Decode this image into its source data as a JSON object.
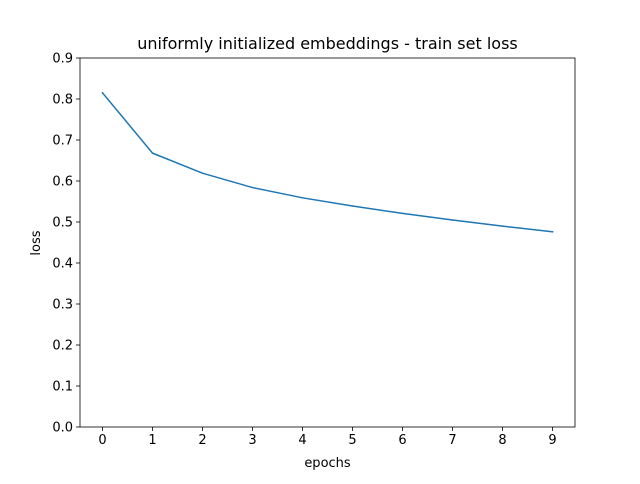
{
  "chart_data": {
    "type": "line",
    "title": "uniformly initialized embeddings - train set loss",
    "xlabel": "epochs",
    "ylabel": "loss",
    "x": [
      0,
      1,
      2,
      3,
      4,
      5,
      6,
      7,
      8,
      9
    ],
    "xlim": [
      -0.45,
      9.45
    ],
    "ylim": [
      0.0,
      0.9
    ],
    "xticks": [
      0,
      1,
      2,
      3,
      4,
      5,
      6,
      7,
      8,
      9
    ],
    "yticks": [
      0.0,
      0.1,
      0.2,
      0.3,
      0.4,
      0.5,
      0.6,
      0.7,
      0.8,
      0.9
    ],
    "xtick_labels": [
      "0",
      "1",
      "2",
      "3",
      "4",
      "5",
      "6",
      "7",
      "8",
      "9"
    ],
    "ytick_labels": [
      "0.0",
      "0.1",
      "0.2",
      "0.3",
      "0.4",
      "0.5",
      "0.6",
      "0.7",
      "0.8",
      "0.9"
    ],
    "grid": false,
    "legend": false,
    "series": [
      {
        "color": "#1f77b4",
        "values": [
          0.815,
          0.668,
          0.619,
          0.584,
          0.559,
          0.539,
          0.521,
          0.505,
          0.49,
          0.476
        ]
      }
    ]
  }
}
